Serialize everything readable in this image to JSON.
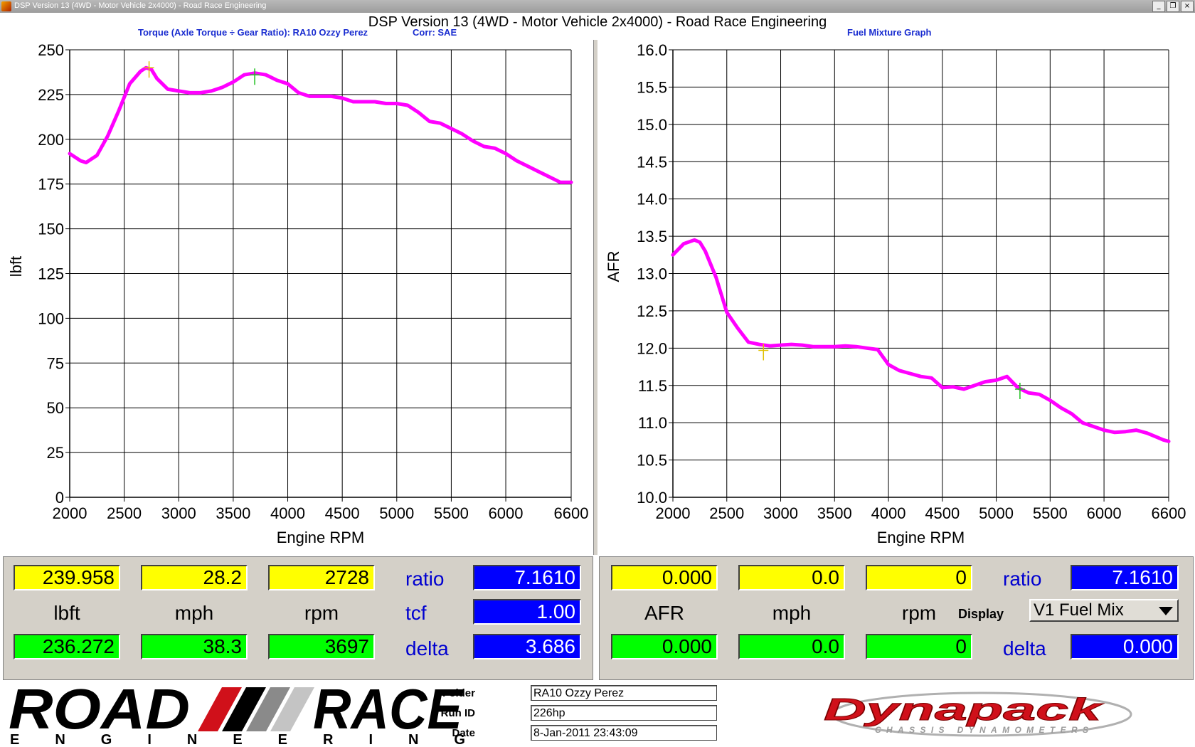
{
  "window": {
    "title": "DSP Version 13 (4WD - Motor Vehicle 2x4000) - Road Race Engineering",
    "buttons": [
      "_",
      "❐",
      "×"
    ]
  },
  "banner_title": "DSP Version 13 (4WD - Motor Vehicle 2x4000) - Road Race Engineering",
  "left_chart_title": "Torque (Axle Torque ÷ Gear Ratio): RA10 Ozzy Perez",
  "left_chart_corr": "Corr: SAE",
  "right_chart_title": "Fuel Mixture Graph",
  "chart_data": [
    {
      "type": "line",
      "title": "Torque (Axle Torque ÷ Gear Ratio): RA10 Ozzy Perez",
      "xlabel": "Engine RPM",
      "ylabel": "lbft",
      "xlim": [
        2000,
        6600
      ],
      "ylim": [
        0,
        250
      ],
      "xticks": [
        2000,
        2500,
        3000,
        3500,
        4000,
        4500,
        5000,
        5500,
        6000,
        6600
      ],
      "yticks": [
        0,
        25,
        50,
        75,
        100,
        125,
        150,
        175,
        200,
        225,
        250
      ],
      "grid": true,
      "line_color": "#ff00ff",
      "series": [
        {
          "x": [
            2000,
            2100,
            2150,
            2250,
            2350,
            2450,
            2550,
            2650,
            2700,
            2750,
            2800,
            2900,
            3000,
            3100,
            3200,
            3300,
            3400,
            3500,
            3600,
            3700,
            3800,
            3900,
            4000,
            4100,
            4200,
            4300,
            4400,
            4500,
            4600,
            4700,
            4800,
            4900,
            5000,
            5100,
            5200,
            5300,
            5400,
            5500,
            5600,
            5700,
            5800,
            5900,
            6000,
            6100,
            6200,
            6300,
            6400,
            6500,
            6600
          ],
          "y": [
            192,
            188,
            187,
            191,
            202,
            216,
            231,
            238,
            240,
            239,
            234,
            228,
            227,
            226,
            226,
            227,
            229,
            232,
            236,
            237,
            236,
            233,
            231,
            226,
            224,
            224,
            224,
            223,
            221,
            221,
            221,
            220,
            220,
            219,
            215,
            210,
            209,
            206,
            203,
            199,
            196,
            195,
            192,
            188,
            185,
            182,
            179,
            176,
            176
          ]
        }
      ],
      "cursors": [
        {
          "x": 2728,
          "y": 240,
          "color": "#e0c000"
        },
        {
          "x": 3697,
          "y": 236,
          "color": "#20c020"
        }
      ]
    },
    {
      "type": "line",
      "title": "Fuel Mixture Graph",
      "xlabel": "Engine RPM",
      "ylabel": "AFR",
      "xlim": [
        2000,
        6600
      ],
      "ylim": [
        10.0,
        16.0
      ],
      "xticks": [
        2000,
        2500,
        3000,
        3500,
        4000,
        4500,
        5000,
        5500,
        6000,
        6600
      ],
      "yticks": [
        "10.0",
        "10.5",
        "11.0",
        "11.5",
        "12.0",
        "12.5",
        "13.0",
        "13.5",
        "14.0",
        "14.5",
        "15.0",
        "15.5",
        "16.0"
      ],
      "grid": true,
      "line_color": "#ff00ff",
      "series": [
        {
          "x": [
            2000,
            2100,
            2200,
            2250,
            2300,
            2400,
            2500,
            2600,
            2700,
            2800,
            2900,
            3000,
            3100,
            3200,
            3300,
            3400,
            3500,
            3600,
            3700,
            3800,
            3900,
            4000,
            4100,
            4200,
            4300,
            4400,
            4500,
            4600,
            4700,
            4800,
            4900,
            5000,
            5100,
            5200,
            5300,
            5400,
            5500,
            5600,
            5700,
            5800,
            5900,
            6000,
            6100,
            6200,
            6300,
            6400,
            6500,
            6550,
            6600
          ],
          "y": [
            13.25,
            13.4,
            13.45,
            13.42,
            13.3,
            12.95,
            12.48,
            12.27,
            12.08,
            12.05,
            12.03,
            12.04,
            12.05,
            12.04,
            12.02,
            12.02,
            12.02,
            12.03,
            12.02,
            12.0,
            11.98,
            11.78,
            11.7,
            11.66,
            11.62,
            11.6,
            11.47,
            11.48,
            11.45,
            11.5,
            11.55,
            11.57,
            11.62,
            11.47,
            11.4,
            11.38,
            11.3,
            11.2,
            11.12,
            11.0,
            10.95,
            10.9,
            10.87,
            10.88,
            10.9,
            10.86,
            10.8,
            10.77,
            10.75
          ]
        }
      ],
      "cursors": [
        {
          "x": 2840,
          "y": 11.97,
          "color": "#e0c000"
        },
        {
          "x": 5220,
          "y": 11.45,
          "color": "#20c020"
        }
      ]
    }
  ],
  "left_panel": {
    "cursor1": {
      "lbft": "239.958",
      "mph": "28.2",
      "rpm": "2728"
    },
    "cursor2": {
      "lbft": "236.272",
      "mph": "38.3",
      "rpm": "3697"
    },
    "labels": {
      "lbft": "lbft",
      "mph": "mph",
      "rpm": "rpm"
    },
    "ratio_label": "ratio",
    "ratio_value": "7.1610",
    "tcf_label": "tcf",
    "tcf_value": "1.00",
    "delta_label": "delta",
    "delta_value": "3.686"
  },
  "right_panel": {
    "cursor1": {
      "afr": "0.000",
      "mph": "0.0",
      "rpm": "0"
    },
    "cursor2": {
      "afr": "0.000",
      "mph": "0.0",
      "rpm": "0"
    },
    "labels": {
      "afr": "AFR",
      "mph": "mph",
      "rpm": "rpm"
    },
    "ratio_label": "ratio",
    "ratio_value": "7.1610",
    "display_label": "Display",
    "display_select": "V1 Fuel Mix",
    "delta_label": "delta",
    "delta_value": "0.000"
  },
  "footer": {
    "logo_text": {
      "road": "ROAD",
      "race": "RACE",
      "engineering": "E N G I N E E R I N G"
    },
    "folder_label": "Folder",
    "folder_value": "RA10 Ozzy Perez",
    "runid_label": "Run ID",
    "runid_value": "226hp",
    "date_label": "Date",
    "date_value": "8-Jan-2011 23:43:09",
    "dynapack_text": "Dynapack",
    "dynapack_sub": "CHASSIS DYNAMOMETERS"
  },
  "colors": {
    "curve": "#ff00ff",
    "yellow_field": "#ffff00",
    "green_field": "#00ff00",
    "blue_field": "#0000ff",
    "panel_bg": "#d4d0c8",
    "chart_title": "#1a2dd0",
    "logo_red": "#d0101a"
  }
}
